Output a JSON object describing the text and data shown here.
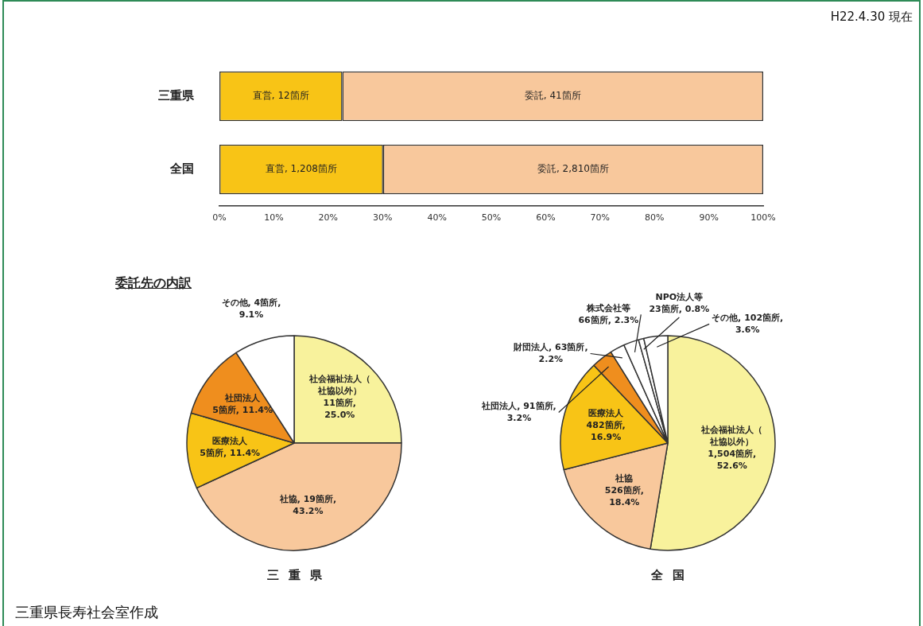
{
  "chart_data": [
    {
      "type": "bar",
      "orientation": "horizontal",
      "stacked": true,
      "categories": [
        "三重県",
        "全国"
      ],
      "series": [
        {
          "color": "#f8c416",
          "values": [
            22.6,
            30.1
          ]
        },
        {
          "color": "#f8c89c",
          "values": [
            77.4,
            69.9
          ]
        }
      ],
      "xlim": [
        0,
        100
      ],
      "xticks": [
        {
          "value": 0,
          "label": "0%"
        },
        {
          "value": 10,
          "label": "10%"
        },
        {
          "value": 20,
          "label": "20%"
        },
        {
          "value": 30,
          "label": "30%"
        },
        {
          "value": 40,
          "label": "40%"
        },
        {
          "value": 50,
          "label": "50%"
        },
        {
          "value": 60,
          "label": "60%"
        },
        {
          "value": 70,
          "label": "70%"
        },
        {
          "value": 80,
          "label": "80%"
        },
        {
          "value": 90,
          "label": "90%"
        },
        {
          "value": 100,
          "label": "100%"
        }
      ],
      "grid": false,
      "legend": false,
      "annotations": [
        "H22.4.30 現在",
        "三重県長寿社会室作成",
        "直営, 12箇所",
        "委託, 41箇所",
        "直営, 1,208箇所",
        "委託, 2,810箇所"
      ]
    },
    {
      "type": "pie",
      "title": "委託先の内訳",
      "xlabel": "三重県",
      "legend": false,
      "categories": [
        "社会福祉法人（社協以外）",
        "社協",
        "医療法人",
        "社団法人",
        "その他"
      ],
      "values": [
        25.0,
        43.2,
        11.4,
        11.4,
        9.1
      ],
      "colors": [
        "#f8f29c",
        "#f8c89c",
        "#f8c416",
        "#ef8e1e",
        "#ffffff"
      ],
      "value_labels": [
        "11箇所, 25.0%",
        "19箇所, 43.2%",
        "5箇所, 11.4%",
        "5箇所, 11.4%",
        "4箇所, 9.1%"
      ]
    },
    {
      "type": "pie",
      "xlabel": "全国",
      "legend": false,
      "categories": [
        "社会福祉法人（社協以外）",
        "社協",
        "医療法人",
        "社団法人",
        "財団法人",
        "株式会社等",
        "NPO法人等",
        "その他"
      ],
      "values": [
        52.6,
        18.4,
        16.9,
        3.2,
        2.2,
        2.3,
        0.8,
        3.6
      ],
      "colors": [
        "#f8f29c",
        "#f8c89c",
        "#f8c416",
        "#ef8e1e",
        "#ffffff",
        "#ffffff",
        "#ffffff",
        "#ffffff"
      ],
      "value_labels": [
        "1,504箇所, 52.6%",
        "526箇所, 18.4%",
        "482箇所, 16.9%",
        "91箇所, 3.2%",
        "63箇所, 2.2%",
        "66箇所, 2.3%",
        "23箇所, 0.8%",
        "102箇所, 3.6%"
      ]
    }
  ]
}
